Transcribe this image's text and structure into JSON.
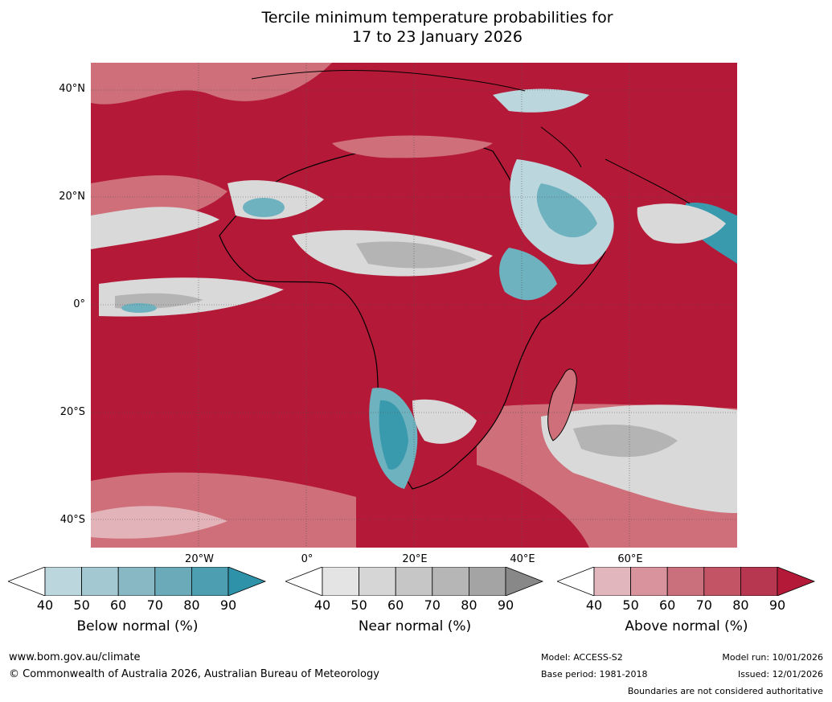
{
  "title_line1": "Tercile minimum temperature probabilities for",
  "title_line2": "17 to 23 January 2026",
  "map": {
    "lat_labels": [
      "40°N",
      "20°N",
      "0°",
      "20°S",
      "40°S"
    ],
    "lon_labels": [
      "20°W",
      "0°",
      "20°E",
      "40°E",
      "60°E"
    ],
    "colors": {
      "ocean_above_dark": "#b41a38",
      "above_mid": "#cf6f7a",
      "above_light": "#e2b3b9",
      "near_light": "#d9d9d9",
      "near_mid": "#b4b4b4",
      "below_light": "#bcd6de",
      "below_mid": "#6eb1bf",
      "below_dark": "#3a9aad",
      "coast": "#000000",
      "borders": "#808080"
    }
  },
  "colorbars": [
    {
      "id": "below",
      "label": "Below normal (%)",
      "ticks": [
        "40",
        "50",
        "60",
        "70",
        "80",
        "90"
      ],
      "colors": [
        "#ffffff",
        "#bcd6de",
        "#a4c8d1",
        "#88b8c4",
        "#6aaab9",
        "#4c9eb0",
        "#2e92a8"
      ]
    },
    {
      "id": "near",
      "label": "Near normal (%)",
      "ticks": [
        "40",
        "50",
        "60",
        "70",
        "80",
        "90"
      ],
      "colors": [
        "#ffffff",
        "#e4e4e4",
        "#d6d6d6",
        "#c6c6c6",
        "#b6b6b6",
        "#a4a4a4",
        "#888888"
      ]
    },
    {
      "id": "above",
      "label": "Above normal (%)",
      "ticks": [
        "40",
        "50",
        "60",
        "70",
        "80",
        "90"
      ],
      "colors": [
        "#ffffff",
        "#e2b6bd",
        "#d8939d",
        "#ca6f7c",
        "#c25465",
        "#b73650",
        "#b41a38"
      ]
    }
  ],
  "footer": {
    "website": "www.bom.gov.au/climate",
    "copyright": "© Commonwealth of Australia 2026, Australian Bureau of Meteorology",
    "model": "Model: ACCESS-S2",
    "base_period": "Base period: 1981-2018",
    "model_run": "Model run: 10/01/2026",
    "issued": "Issued: 12/01/2026",
    "disclaimer": "Boundaries are not considered authoritative"
  }
}
